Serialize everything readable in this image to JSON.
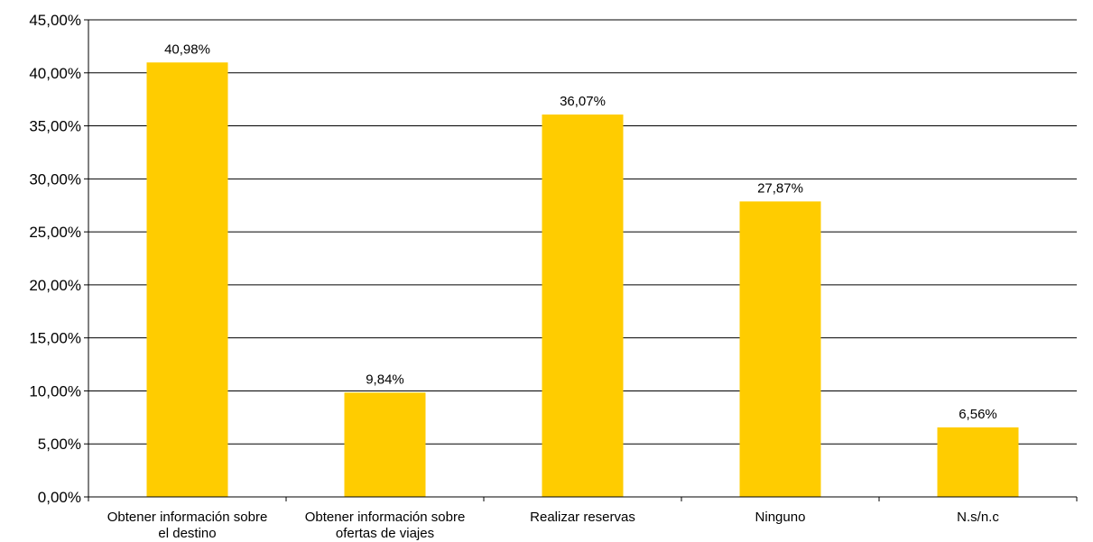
{
  "chart_data": {
    "type": "bar",
    "title": "",
    "xlabel": "",
    "ylabel": "",
    "categories": [
      [
        "Obtener información sobre",
        "el destino"
      ],
      [
        "Obtener información sobre",
        "ofertas de viajes"
      ],
      [
        "Realizar reservas"
      ],
      [
        "Ninguno"
      ],
      [
        "N.s/n.c"
      ]
    ],
    "values": [
      40.98,
      9.84,
      36.07,
      27.87,
      6.56
    ],
    "data_labels": [
      "40,98%",
      "9,84%",
      "36,07%",
      "27,87%",
      "6,56%"
    ],
    "ylim": [
      0,
      45
    ],
    "yticks": [
      0,
      5,
      10,
      15,
      20,
      25,
      30,
      35,
      40,
      45
    ],
    "ytick_labels": [
      "0,00%",
      "5,00%",
      "10,00%",
      "15,00%",
      "20,00%",
      "25,00%",
      "30,00%",
      "35,00%",
      "40,00%",
      "45,00%"
    ],
    "bar_color": "#FFCC00",
    "grid": true,
    "legend": "none"
  }
}
